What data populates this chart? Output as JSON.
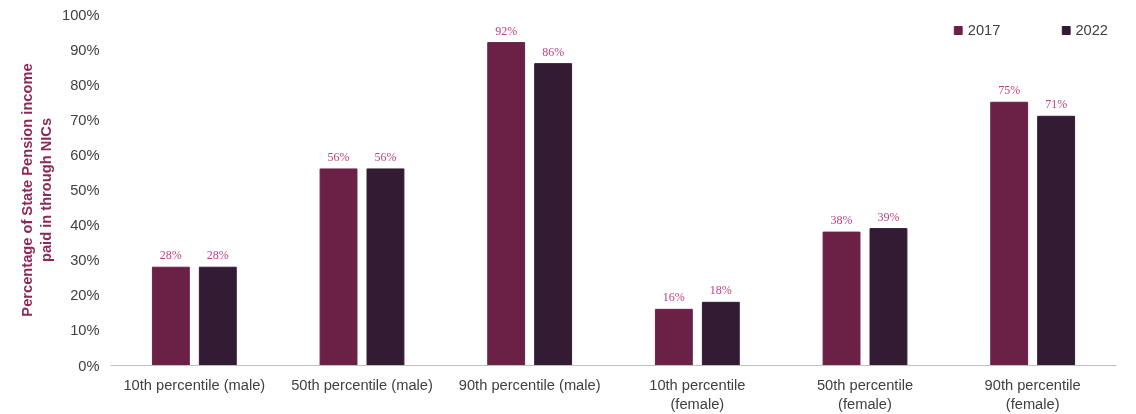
{
  "chart_data": {
    "type": "bar",
    "ylabel": "Percentage of State Pension income\npaid in through NICs",
    "categories": [
      "10th percentile (male)",
      "50th percentile (male)",
      "90th percentile (male)",
      "10th percentile\n(female)",
      "50th percentile\n(female)",
      "90th percentile\n(female)"
    ],
    "series": [
      {
        "name": "2017",
        "color": "#6b2146",
        "values": [
          28,
          56,
          92,
          16,
          38,
          75
        ],
        "value_labels": [
          "28%",
          "56%",
          "92%",
          "16%",
          "38%",
          "75%"
        ]
      },
      {
        "name": "2022",
        "color": "#331c33",
        "values": [
          28,
          56,
          86,
          18,
          39,
          71
        ],
        "value_labels": [
          "28%",
          "56%",
          "86%",
          "18%",
          "39%",
          "71%"
        ]
      }
    ],
    "ylim": [
      0,
      100
    ],
    "yticks": [
      {
        "value": 0,
        "label": "0%"
      },
      {
        "value": 10,
        "label": "10%"
      },
      {
        "value": 20,
        "label": "20%"
      },
      {
        "value": 30,
        "label": "30%"
      },
      {
        "value": 40,
        "label": "40%"
      },
      {
        "value": 50,
        "label": "50%"
      },
      {
        "value": 60,
        "label": "60%"
      },
      {
        "value": 70,
        "label": "70%"
      },
      {
        "value": 80,
        "label": "80%"
      },
      {
        "value": 90,
        "label": "90%"
      },
      {
        "value": 100,
        "label": "100%"
      }
    ],
    "grid": false,
    "legend": "top right"
  }
}
